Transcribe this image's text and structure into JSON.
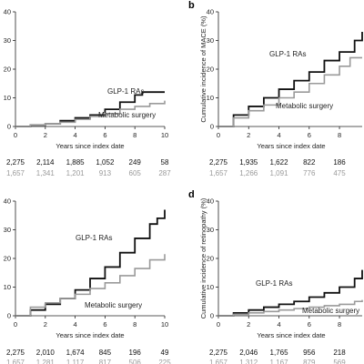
{
  "chart_data": [
    {
      "panel": "",
      "type": "line",
      "xlabel": "Years since index date",
      "ylabel": "",
      "xticks": [
        0,
        2,
        4,
        6,
        8,
        10
      ],
      "yticks": [
        0,
        10,
        20,
        30,
        40
      ],
      "xlim": [
        0,
        10
      ],
      "ylim": [
        0,
        40
      ],
      "series": [
        {
          "name": "GLP-1 RAs",
          "color": "#111111",
          "x": [
            0,
            1,
            2,
            3,
            4,
            5,
            6,
            7,
            8,
            8.5,
            9,
            10
          ],
          "y": [
            0,
            0.5,
            1,
            2,
            3,
            4,
            6,
            8.5,
            11,
            12,
            12,
            12
          ]
        },
        {
          "name": "Metabolic surgery",
          "color": "#9a9a9a",
          "x": [
            0,
            1,
            2,
            3,
            4,
            5,
            6,
            7,
            8,
            9,
            10
          ],
          "y": [
            0,
            0.5,
            1,
            1.5,
            2.5,
            3.5,
            4.5,
            6,
            7,
            8,
            9
          ]
        }
      ],
      "number_at_risk": {
        "ticks": [
          0,
          2,
          4,
          6,
          8,
          10
        ],
        "glp1": [
          "2,275",
          "2,114",
          "1,885",
          "1,052",
          "249",
          "58"
        ],
        "surgery": [
          "1,657",
          "1,341",
          "1,201",
          "913",
          "605",
          "287"
        ]
      }
    },
    {
      "panel": "b",
      "type": "line",
      "xlabel": "Years since index date",
      "ylabel": "Cumulative incidence of MACE (%)",
      "xticks": [
        0,
        2,
        4,
        6,
        8
      ],
      "yticks": [
        0,
        10,
        20,
        30,
        40
      ],
      "xlim": [
        0,
        9.5
      ],
      "ylim": [
        0,
        40
      ],
      "series": [
        {
          "name": "GLP-1 RAs",
          "color": "#111111",
          "x": [
            0,
            1,
            2,
            3,
            4,
            5,
            6,
            7,
            8,
            9,
            9.5
          ],
          "y": [
            0,
            4,
            7,
            10,
            13,
            16,
            19,
            23,
            26,
            30,
            33
          ]
        },
        {
          "name": "Metabolic surgery",
          "color": "#9a9a9a",
          "x": [
            0,
            1,
            2,
            3,
            4,
            5,
            6,
            7,
            8,
            8.7,
            9.5
          ],
          "y": [
            0,
            3,
            5.5,
            7.5,
            10,
            12,
            15,
            18,
            21,
            24,
            24
          ]
        }
      ],
      "number_at_risk": {
        "ticks": [
          0,
          2,
          4,
          6,
          8
        ],
        "glp1": [
          "2,275",
          "1,935",
          "1,622",
          "822",
          "186"
        ],
        "surgery": [
          "1,657",
          "1,266",
          "1,091",
          "776",
          "475"
        ]
      }
    },
    {
      "panel": "",
      "type": "line",
      "xlabel": "Years since index date",
      "ylabel": "",
      "xticks": [
        0,
        2,
        4,
        6,
        8,
        10
      ],
      "yticks": [
        0,
        10,
        20,
        30,
        40
      ],
      "xlim": [
        0,
        10
      ],
      "ylim": [
        0,
        40
      ],
      "series": [
        {
          "name": "GLP-1 RAs",
          "color": "#111111",
          "x": [
            0,
            1,
            2,
            3,
            4,
            5,
            6,
            7,
            8,
            9,
            9.5,
            10
          ],
          "y": [
            0,
            2,
            4,
            6,
            9,
            13,
            17,
            22,
            27,
            32,
            34,
            37
          ]
        },
        {
          "name": "Metabolic surgery",
          "color": "#9a9a9a",
          "x": [
            0,
            1,
            2,
            3,
            4,
            5,
            6,
            7,
            8,
            9,
            10
          ],
          "y": [
            0,
            3,
            4.5,
            6,
            7.5,
            9.5,
            11.5,
            14,
            16.5,
            19.5,
            21.5
          ]
        }
      ],
      "number_at_risk": {
        "ticks": [
          0,
          2,
          4,
          6,
          8,
          10
        ],
        "glp1": [
          "2,275",
          "2,010",
          "1,674",
          "845",
          "196",
          "49"
        ],
        "surgery": [
          "1,657",
          "1,281",
          "1,117",
          "817",
          "506",
          "225"
        ]
      }
    },
    {
      "panel": "d",
      "type": "line",
      "xlabel": "Years since index date",
      "ylabel": "Cumulative incidence of retinopathy (%)",
      "xticks": [
        0,
        2,
        4,
        6,
        8
      ],
      "yticks": [
        0,
        10,
        20,
        30,
        40
      ],
      "xlim": [
        0,
        9.5
      ],
      "ylim": [
        0,
        40
      ],
      "series": [
        {
          "name": "GLP-1 RAs",
          "color": "#111111",
          "x": [
            0,
            1,
            2,
            3,
            4,
            5,
            6,
            7,
            8,
            9,
            9.5
          ],
          "y": [
            0,
            1,
            2,
            3,
            4,
            5,
            6.5,
            8,
            10,
            13,
            16
          ]
        },
        {
          "name": "Metabolic surgery",
          "color": "#9a9a9a",
          "x": [
            0,
            1,
            2,
            3,
            4,
            5,
            6,
            7,
            8,
            9,
            9.5
          ],
          "y": [
            0,
            0.5,
            1,
            1.5,
            2,
            2.5,
            3,
            3.5,
            4,
            5,
            5.5
          ]
        }
      ],
      "number_at_risk": {
        "ticks": [
          0,
          2,
          4,
          6,
          8
        ],
        "glp1": [
          "2,275",
          "2,046",
          "1,765",
          "956",
          "218"
        ],
        "surgery": [
          "1,657",
          "1,312",
          "1,167",
          "879",
          "569"
        ]
      }
    }
  ]
}
